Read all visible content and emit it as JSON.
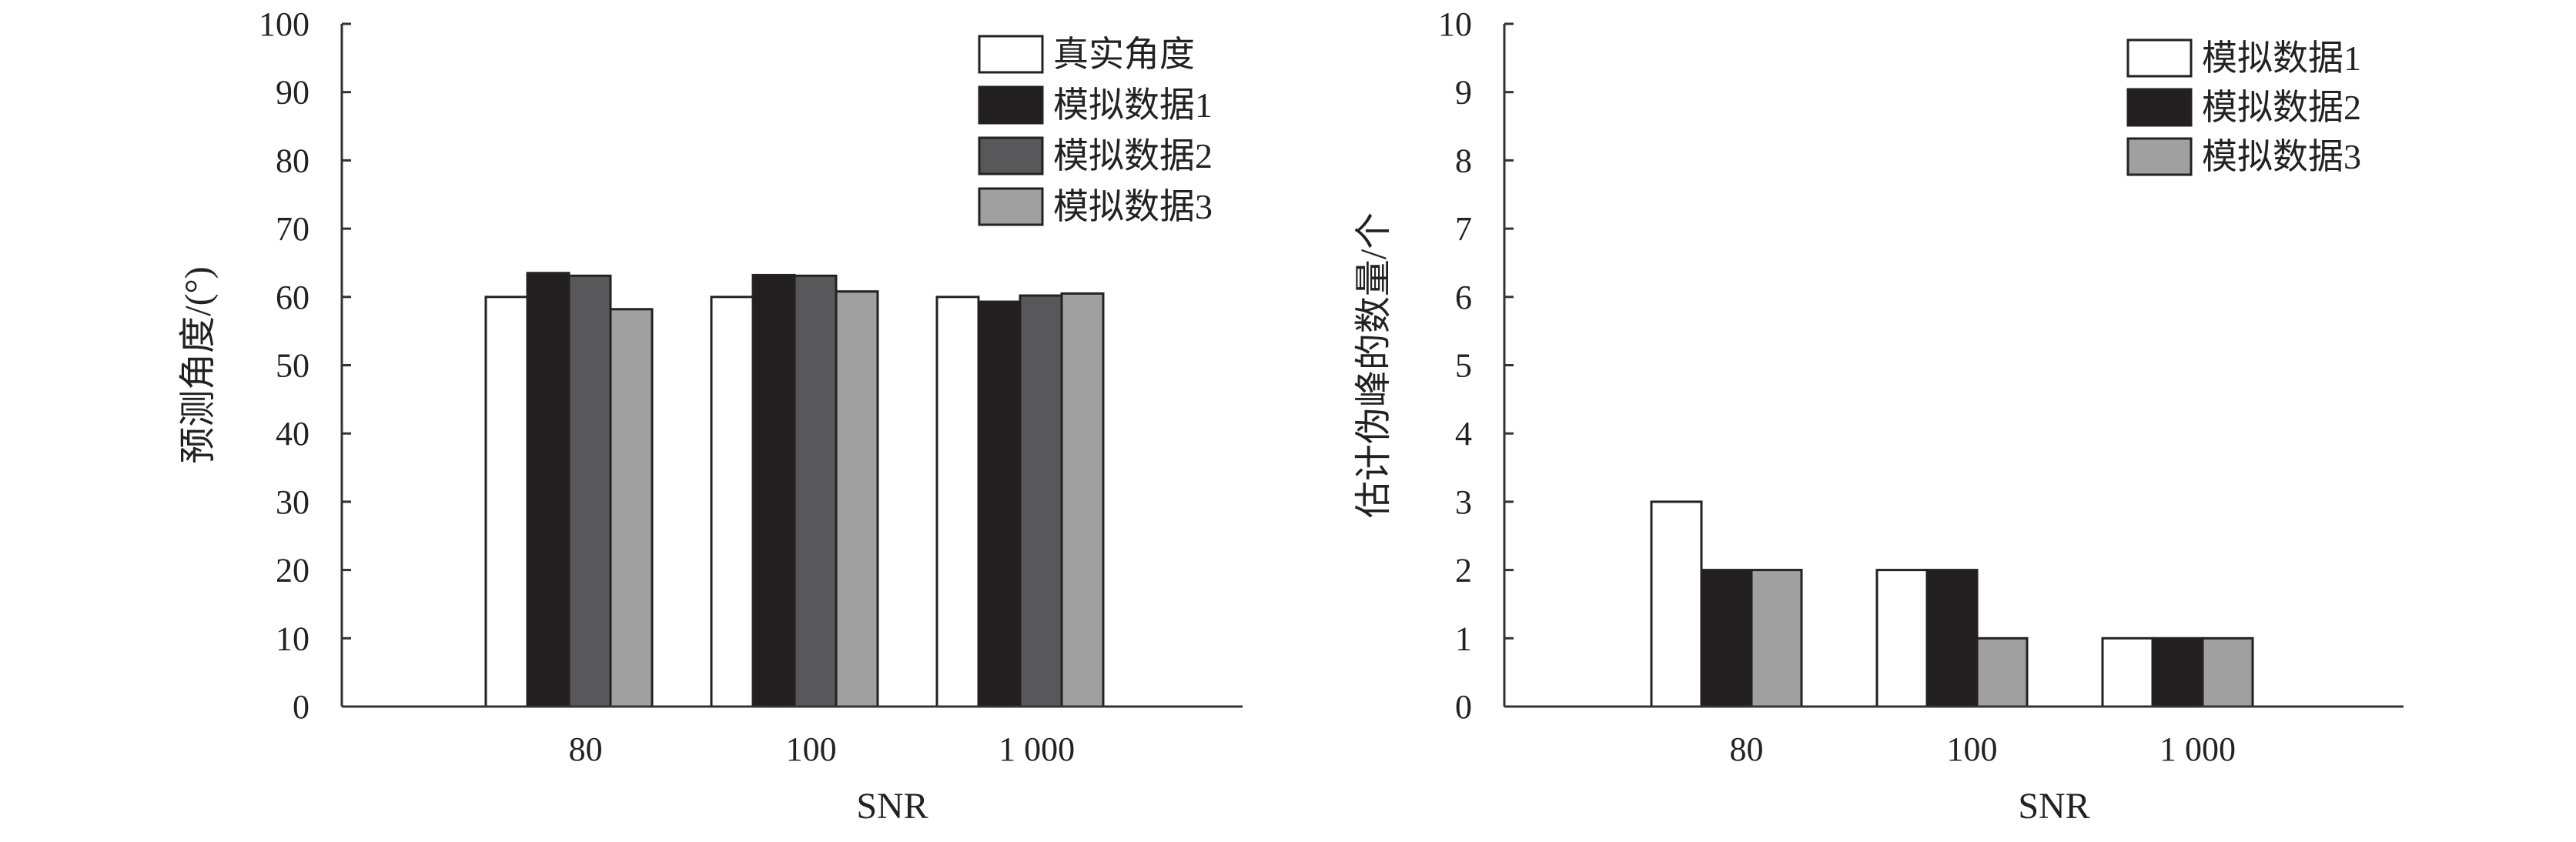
{
  "chart_data": [
    {
      "type": "bar",
      "title": "",
      "xlabel": "SNR",
      "ylabel": "预测角度/(°)",
      "categories": [
        "80",
        "100",
        "1 000"
      ],
      "ylim": [
        0,
        100
      ],
      "yticks": [
        0,
        10,
        20,
        30,
        40,
        50,
        60,
        70,
        80,
        90,
        100
      ],
      "grid": false,
      "legend_position": "top-right",
      "series": [
        {
          "name": "真实角度",
          "color": "#ffffff",
          "values": [
            60,
            60,
            60
          ]
        },
        {
          "name": "模拟数据1",
          "color": "#231f20",
          "values": [
            63.5,
            63.2,
            59.3
          ]
        },
        {
          "name": "模拟数据2",
          "color": "#58585a",
          "values": [
            63.1,
            63.1,
            60.2
          ]
        },
        {
          "name": "模拟数据3",
          "color": "#a0a0a0",
          "values": [
            58.2,
            60.8,
            60.5
          ]
        }
      ]
    },
    {
      "type": "bar",
      "title": "",
      "xlabel": "SNR",
      "ylabel": "估计伪峰的数量/个",
      "categories": [
        "80",
        "100",
        "1 000"
      ],
      "ylim": [
        0,
        10
      ],
      "yticks": [
        0,
        1,
        2,
        3,
        4,
        5,
        6,
        7,
        8,
        9,
        10
      ],
      "grid": false,
      "legend_position": "top-right",
      "series": [
        {
          "name": "模拟数据1",
          "color": "#ffffff",
          "values": [
            3,
            2,
            1
          ]
        },
        {
          "name": "模拟数据2",
          "color": "#231f20",
          "values": [
            2,
            2,
            1
          ]
        },
        {
          "name": "模拟数据3",
          "color": "#a0a0a0",
          "values": [
            2,
            1,
            1
          ]
        }
      ]
    }
  ]
}
